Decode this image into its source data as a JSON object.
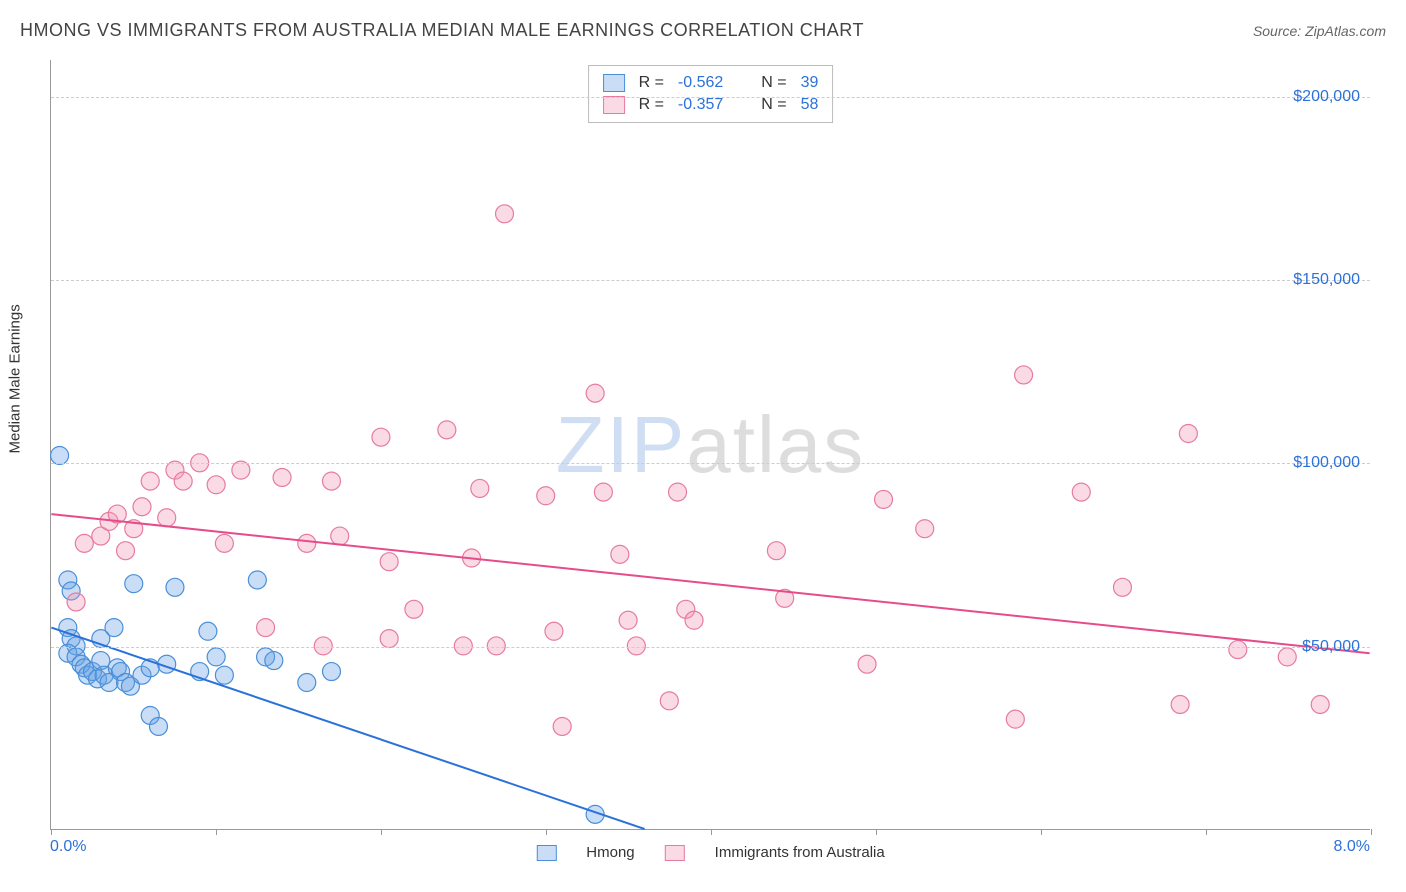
{
  "title": "HMONG VS IMMIGRANTS FROM AUSTRALIA MEDIAN MALE EARNINGS CORRELATION CHART",
  "source": "Source: ZipAtlas.com",
  "y_axis_title": "Median Male Earnings",
  "watermark": {
    "part1": "ZIP",
    "part2": "atlas"
  },
  "chart": {
    "type": "scatter",
    "background_color": "#ffffff",
    "grid_color": "#cccccc",
    "axis_color": "#999999",
    "xlim": [
      0,
      8
    ],
    "ylim": [
      0,
      210000
    ],
    "x_ticks": [
      0,
      1,
      2,
      3,
      4,
      5,
      6,
      7,
      8
    ],
    "x_tick_labels_shown": {
      "0": "0.0%",
      "8": "8.0%"
    },
    "y_gridlines": [
      50000,
      100000,
      150000,
      200000
    ],
    "y_tick_labels": {
      "50000": "$50,000",
      "100000": "$100,000",
      "150000": "$150,000",
      "200000": "$200,000"
    },
    "label_color": "#2b71d9",
    "label_fontsize": 16,
    "title_fontsize": 18,
    "marker_radius": 9,
    "marker_stroke_width": 1.2,
    "regression_line_width": 2
  },
  "series": [
    {
      "name": "Hmong",
      "legend_label": "Hmong",
      "fill_color": "rgba(100,160,230,0.35)",
      "stroke_color": "#4a8fd8",
      "line_color": "#2b71d9",
      "R": "-0.562",
      "N": "39",
      "regression": {
        "x1": 0.0,
        "y1": 55000,
        "x2": 3.6,
        "y2": 0
      },
      "points": [
        [
          0.05,
          102000
        ],
        [
          0.1,
          68000
        ],
        [
          0.12,
          65000
        ],
        [
          0.1,
          55000
        ],
        [
          0.12,
          52000
        ],
        [
          0.15,
          50000
        ],
        [
          0.1,
          48000
        ],
        [
          0.15,
          47000
        ],
        [
          0.18,
          45000
        ],
        [
          0.2,
          44000
        ],
        [
          0.22,
          42000
        ],
        [
          0.25,
          43000
        ],
        [
          0.28,
          41000
        ],
        [
          0.3,
          46000
        ],
        [
          0.32,
          42000
        ],
        [
          0.35,
          40000
        ],
        [
          0.38,
          55000
        ],
        [
          0.4,
          44000
        ],
        [
          0.42,
          43000
        ],
        [
          0.45,
          40000
        ],
        [
          0.48,
          39000
        ],
        [
          0.5,
          67000
        ],
        [
          0.55,
          42000
        ],
        [
          0.6,
          44000
        ],
        [
          0.6,
          31000
        ],
        [
          0.65,
          28000
        ],
        [
          0.7,
          45000
        ],
        [
          0.75,
          66000
        ],
        [
          0.9,
          43000
        ],
        [
          0.95,
          54000
        ],
        [
          1.0,
          47000
        ],
        [
          1.05,
          42000
        ],
        [
          1.25,
          68000
        ],
        [
          1.3,
          47000
        ],
        [
          1.35,
          46000
        ],
        [
          1.55,
          40000
        ],
        [
          1.7,
          43000
        ],
        [
          3.3,
          4000
        ],
        [
          0.3,
          52000
        ]
      ]
    },
    {
      "name": "Immigrants from Australia",
      "legend_label": "Immigrants from Australia",
      "fill_color": "rgba(240,150,180,0.35)",
      "stroke_color": "#e67ba1",
      "line_color": "#e64b8a",
      "R": "-0.357",
      "N": "58",
      "regression": {
        "x1": 0.0,
        "y1": 86000,
        "x2": 8.0,
        "y2": 48000
      },
      "points": [
        [
          0.15,
          62000
        ],
        [
          0.2,
          78000
        ],
        [
          0.3,
          80000
        ],
        [
          0.35,
          84000
        ],
        [
          0.4,
          86000
        ],
        [
          0.5,
          82000
        ],
        [
          0.55,
          88000
        ],
        [
          0.6,
          95000
        ],
        [
          0.7,
          85000
        ],
        [
          0.75,
          98000
        ],
        [
          0.8,
          95000
        ],
        [
          0.9,
          100000
        ],
        [
          1.0,
          94000
        ],
        [
          1.05,
          78000
        ],
        [
          1.15,
          98000
        ],
        [
          1.4,
          96000
        ],
        [
          1.55,
          78000
        ],
        [
          1.65,
          50000
        ],
        [
          1.7,
          95000
        ],
        [
          1.75,
          80000
        ],
        [
          2.0,
          107000
        ],
        [
          2.05,
          52000
        ],
        [
          2.05,
          73000
        ],
        [
          2.4,
          109000
        ],
        [
          2.5,
          50000
        ],
        [
          2.55,
          74000
        ],
        [
          2.6,
          93000
        ],
        [
          2.7,
          50000
        ],
        [
          2.75,
          168000
        ],
        [
          3.0,
          91000
        ],
        [
          3.05,
          54000
        ],
        [
          3.1,
          28000
        ],
        [
          3.3,
          119000
        ],
        [
          3.35,
          92000
        ],
        [
          3.45,
          75000
        ],
        [
          3.5,
          57000
        ],
        [
          3.55,
          50000
        ],
        [
          3.75,
          35000
        ],
        [
          3.8,
          92000
        ],
        [
          3.85,
          60000
        ],
        [
          3.9,
          57000
        ],
        [
          4.4,
          76000
        ],
        [
          4.45,
          63000
        ],
        [
          4.95,
          45000
        ],
        [
          5.05,
          90000
        ],
        [
          5.3,
          82000
        ],
        [
          5.85,
          30000
        ],
        [
          5.9,
          124000
        ],
        [
          6.25,
          92000
        ],
        [
          6.5,
          66000
        ],
        [
          6.85,
          34000
        ],
        [
          6.9,
          108000
        ],
        [
          7.2,
          49000
        ],
        [
          7.5,
          47000
        ],
        [
          7.7,
          34000
        ],
        [
          0.45,
          76000
        ],
        [
          1.3,
          55000
        ],
        [
          2.2,
          60000
        ]
      ]
    }
  ],
  "stats_legend_labels": {
    "R": "R =",
    "N": "N ="
  },
  "series_legend_position": "bottom-center"
}
